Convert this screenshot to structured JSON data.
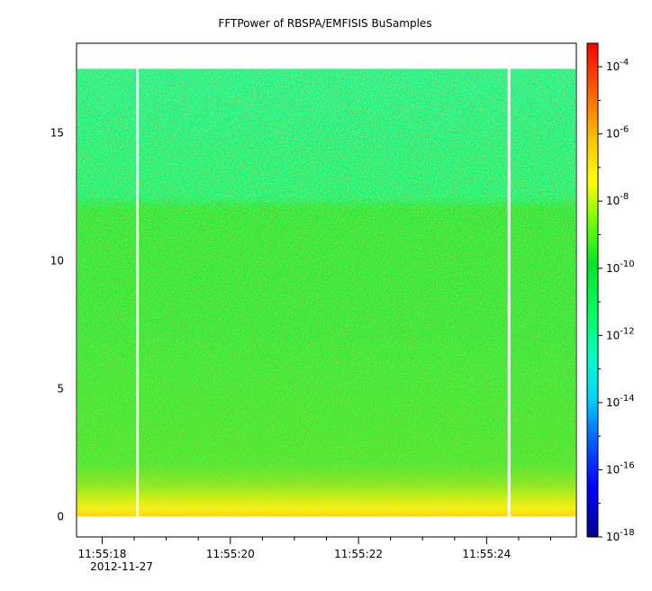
{
  "chart_data": {
    "type": "heatmap",
    "title": "FFTPower of RBSPA/EMFISIS  BuSamples",
    "xlabel": "",
    "ylabel": "",
    "x_ticks": [
      {
        "time": "11:55:18",
        "label": "11:55:18"
      },
      {
        "time": "11:55:20",
        "label": "11:55:20"
      },
      {
        "time": "11:55:22",
        "label": "11:55:22"
      },
      {
        "time": "11:55:24",
        "label": "11:55:24"
      }
    ],
    "x_date_label": "2012-11-27",
    "x_range": [
      "11:55:17.6",
      "11:55:25.4"
    ],
    "y_ticks": [
      0,
      5,
      10,
      15
    ],
    "ylim": [
      -0.8,
      18.5
    ],
    "data_extent_y": [
      0,
      17.5
    ],
    "data_gaps_x": [
      "11:55:18.55",
      "11:55:24.35"
    ],
    "band_boundary_y": 12.2,
    "colorbar": {
      "scale": "log",
      "range": [
        -18,
        -3.3
      ],
      "ticks": [
        {
          "exp": -4,
          "base": "10",
          "sup": "-4"
        },
        {
          "exp": -6,
          "base": "10",
          "sup": "-6"
        },
        {
          "exp": -8,
          "base": "10",
          "sup": "-8"
        },
        {
          "exp": -10,
          "base": "10",
          "sup": "-10"
        },
        {
          "exp": -12,
          "base": "10",
          "sup": "-12"
        },
        {
          "exp": -14,
          "base": "10",
          "sup": "-14"
        },
        {
          "exp": -16,
          "base": "10",
          "sup": "-16"
        },
        {
          "exp": -18,
          "base": "10",
          "sup": "-18"
        }
      ],
      "colors": [
        "#00008f",
        "#0000ff",
        "#00b4ff",
        "#00ffc8",
        "#00ff50",
        "#00e632",
        "#96ff00",
        "#ffff00",
        "#ffc800",
        "#ff6400",
        "#ff0000"
      ]
    }
  }
}
